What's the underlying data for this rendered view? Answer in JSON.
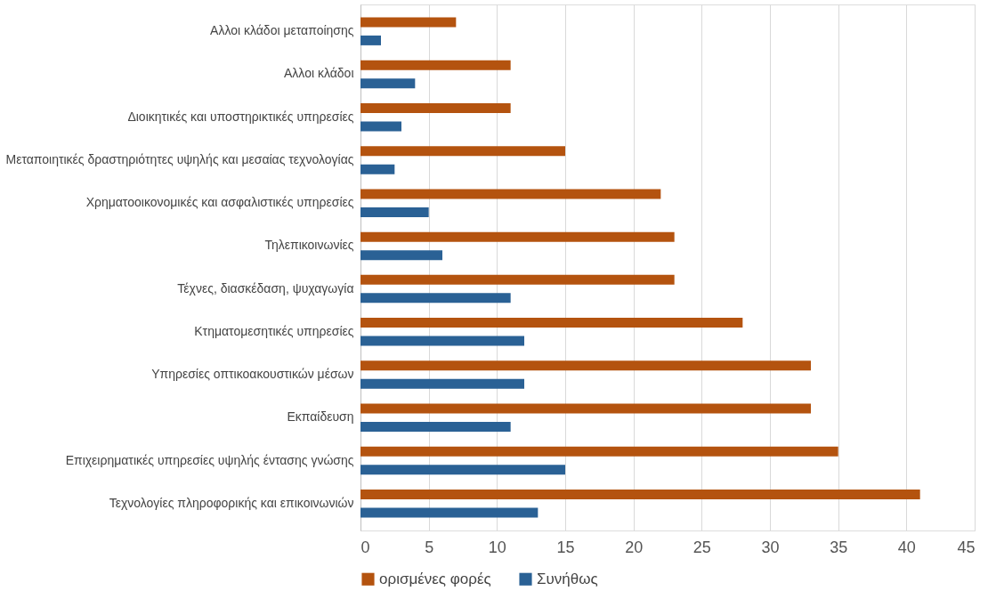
{
  "chart_data": {
    "type": "bar",
    "orientation": "horizontal",
    "categories": [
      "Αλλοι κλάδοι μεταποίησης",
      "Αλλοι κλάδοι",
      "Διοικητικές και υποστηρικτικές υπηρεσίες",
      "Μεταποιητικές δραστηριότητες υψηλής και μεσαίας τεχνολογίας",
      "Χρηματοοικονομικές και ασφαλιστικές υπηρεσίες",
      "Τηλεπικοινωνίες",
      "Τέχνες, διασκέδαση, ψυχαγωγία",
      "Κτηματομεσητικές υπηρεσίες",
      "Υπηρεσίες οπτικοακουστικών μέσων",
      "Εκπαίδευση",
      "Επιχειρηματικές υπηρεσίες υψηλής έντασης γνώσης",
      "Τεχνολογίες πληροφορικής και επικοινωνιών"
    ],
    "series": [
      {
        "name": "ορισμένες φορές",
        "color": "#b4530f",
        "values": [
          7,
          11,
          11,
          15,
          22,
          23,
          23,
          28,
          33,
          33,
          35,
          41
        ]
      },
      {
        "name": "Συνήθως",
        "color": "#2a6195",
        "values": [
          1.5,
          4,
          3,
          2.5,
          5,
          6,
          11,
          12,
          12,
          11,
          15,
          13
        ]
      }
    ],
    "xlim": [
      0,
      45
    ],
    "xticks": [
      0,
      5,
      10,
      15,
      20,
      25,
      30,
      35,
      40,
      45
    ],
    "grid": "x",
    "legend": "bottom"
  }
}
